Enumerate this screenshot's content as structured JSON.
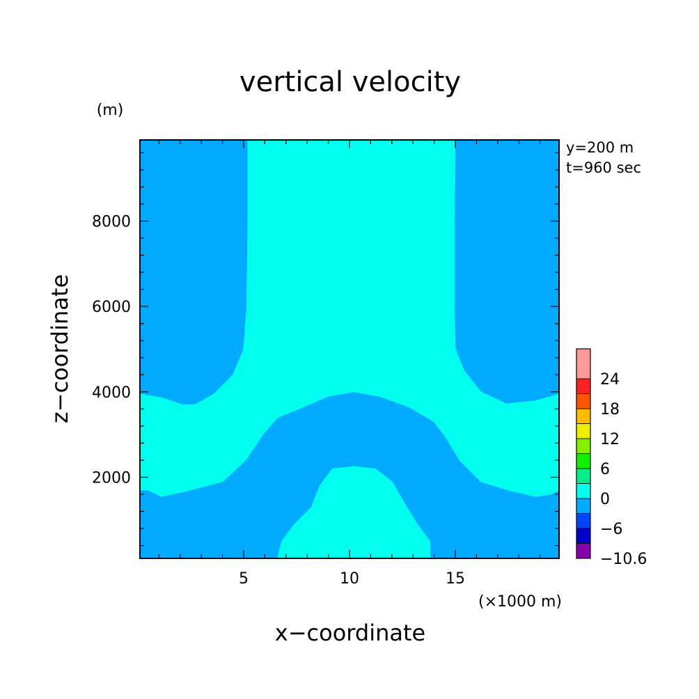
{
  "chart_data": {
    "type": "contour",
    "title": "vertical velocity",
    "xlabel": "x−coordinate",
    "ylabel": "z−coordinate",
    "x_unit": "(×1000 m)",
    "y_unit": "(m)",
    "annotations": [
      "y=200 m",
      "t=960 sec"
    ],
    "xlim": [
      0.1,
      19.9
    ],
    "ylim": [
      100,
      9900
    ],
    "x_ticks": [
      5,
      10,
      15
    ],
    "x_tick_labels": [
      "5",
      "10",
      "15"
    ],
    "y_ticks": [
      2000,
      4000,
      6000,
      8000
    ],
    "y_tick_labels": [
      "2000",
      "4000",
      "6000",
      "8000"
    ],
    "x_minor_step": 1,
    "y_minor_step": 400,
    "background_color": "#00aaff",
    "regions": [
      {
        "label": "0 to 6",
        "color": "#00ffee",
        "points": [
          [
            5.2,
            9900
          ],
          [
            15.0,
            9900
          ],
          [
            14.95,
            8000
          ],
          [
            14.95,
            6000
          ],
          [
            15.0,
            5000
          ],
          [
            15.4,
            4500
          ],
          [
            16.2,
            4000
          ],
          [
            17.4,
            3720
          ],
          [
            18.8,
            3790
          ],
          [
            19.9,
            3950
          ],
          [
            19.9,
            1700
          ],
          [
            19.5,
            1600
          ],
          [
            18.8,
            1550
          ],
          [
            17.5,
            1700
          ],
          [
            16.2,
            1900
          ],
          [
            15.2,
            2400
          ],
          [
            14.6,
            2900
          ],
          [
            14.0,
            3300
          ],
          [
            12.8,
            3650
          ],
          [
            11.4,
            3900
          ],
          [
            10.2,
            4000
          ],
          [
            9.0,
            3900
          ],
          [
            7.6,
            3600
          ],
          [
            6.6,
            3400
          ],
          [
            5.9,
            3000
          ],
          [
            5.1,
            2400
          ],
          [
            4.0,
            1900
          ],
          [
            2.5,
            1700
          ],
          [
            1.1,
            1550
          ],
          [
            0.5,
            1700
          ],
          [
            0.1,
            1700
          ],
          [
            0.1,
            3950
          ],
          [
            1.2,
            3850
          ],
          [
            2.1,
            3700
          ],
          [
            2.7,
            3700
          ],
          [
            3.6,
            3950
          ],
          [
            4.5,
            4400
          ],
          [
            5.0,
            5000
          ],
          [
            5.15,
            6000
          ],
          [
            5.2,
            8000
          ]
        ]
      },
      {
        "label": "0 to 6",
        "color": "#00ffee",
        "points": [
          [
            6.6,
            100
          ],
          [
            13.8,
            100
          ],
          [
            13.8,
            500
          ],
          [
            13.2,
            900
          ],
          [
            12.7,
            1300
          ],
          [
            12.0,
            1900
          ],
          [
            11.2,
            2200
          ],
          [
            10.2,
            2250
          ],
          [
            9.2,
            2200
          ],
          [
            8.6,
            1800
          ],
          [
            8.2,
            1300
          ],
          [
            7.4,
            900
          ],
          [
            6.8,
            500
          ]
        ]
      }
    ],
    "colorbar": {
      "levels": [
        "−10.6",
        "−6",
        "0",
        "6",
        "12",
        "18",
        "24"
      ],
      "bands": [
        {
          "range": [
            -10.6,
            -6
          ],
          "colors": [
            "#8800aa",
            "#0000cc"
          ]
        },
        {
          "range": [
            -6,
            0
          ],
          "colors": [
            "#0044ff",
            "#00aaff"
          ]
        },
        {
          "range": [
            0,
            6
          ],
          "colors": [
            "#00ffee",
            "#00ee88"
          ]
        },
        {
          "range": [
            6,
            12
          ],
          "colors": [
            "#11ee00",
            "#88ee00"
          ]
        },
        {
          "range": [
            12,
            18
          ],
          "colors": [
            "#eeee00",
            "#ffbb00"
          ]
        },
        {
          "range": [
            18,
            24
          ],
          "colors": [
            "#ff5500",
            "#ff2222"
          ]
        },
        {
          "range": [
            24,
            30
          ],
          "colors": [
            "#ff9999"
          ]
        }
      ]
    }
  }
}
